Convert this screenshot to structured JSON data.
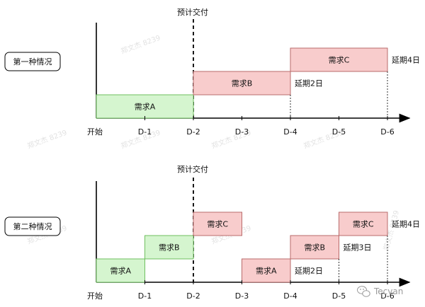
{
  "watermark": "郑文杰 8239",
  "credit": "Tecvan",
  "colors": {
    "green_fill": "#d5f5cf",
    "green_stroke": "#6fbf5f",
    "pink_fill": "#f8cccc",
    "pink_stroke": "#b96b6b",
    "axis": "#000000"
  },
  "scenarios": [
    {
      "label": "第一种情况",
      "deadline_label": "预计交付",
      "ticks": [
        "开始",
        "D-1",
        "D-2",
        "D-3",
        "D-4",
        "D-5",
        "D-6"
      ],
      "tasks": [
        {
          "name": "需求A",
          "start": 0,
          "end": 2,
          "level": 0,
          "status": "on-time"
        },
        {
          "name": "需求B",
          "start": 2,
          "end": 4,
          "level": 1,
          "status": "delayed",
          "delay_note": "延期2日"
        },
        {
          "name": "需求C",
          "start": 4,
          "end": 6,
          "level": 2,
          "status": "delayed",
          "delay_note": "延期4日"
        }
      ]
    },
    {
      "label": "第二种情况",
      "deadline_label": "预计交付",
      "ticks": [
        "开始",
        "D-1",
        "D-2",
        "D-3",
        "D-4",
        "D-5",
        "D-6"
      ],
      "tasks": [
        {
          "name": "需求A",
          "start": 0,
          "end": 1,
          "level": 0,
          "status": "on-time"
        },
        {
          "name": "需求B",
          "start": 1,
          "end": 2,
          "level": 1,
          "status": "on-time"
        },
        {
          "name": "需求C",
          "start": 2,
          "end": 3,
          "level": 2,
          "status": "delayed"
        },
        {
          "name": "需求A",
          "start": 3,
          "end": 4,
          "level": 0,
          "status": "delayed",
          "delay_note": "延期2日"
        },
        {
          "name": "需求B",
          "start": 4,
          "end": 5,
          "level": 1,
          "status": "delayed",
          "delay_note": "延期3日"
        },
        {
          "name": "需求C",
          "start": 5,
          "end": 6,
          "level": 2,
          "status": "delayed",
          "delay_note": "延期4日"
        }
      ]
    }
  ]
}
